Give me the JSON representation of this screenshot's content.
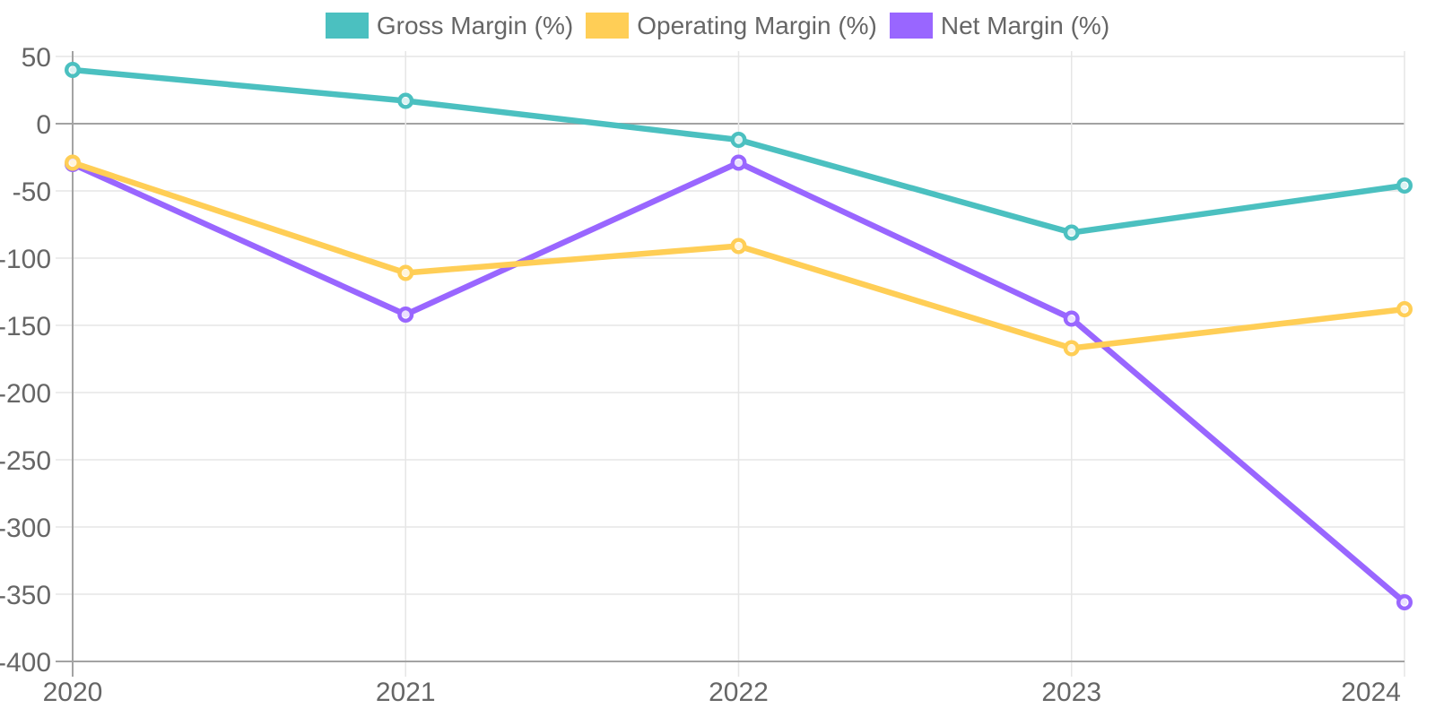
{
  "chart_data": {
    "type": "line",
    "title": "",
    "xlabel": "",
    "ylabel": "",
    "x": [
      "2020",
      "2021",
      "2022",
      "2023",
      "2024"
    ],
    "series": [
      {
        "name": "Gross Margin (%)",
        "color": "#4bc0c0",
        "values": [
          40,
          17,
          -12,
          -81,
          -46
        ]
      },
      {
        "name": "Operating Margin (%)",
        "color": "#ffce56",
        "values": [
          -29,
          -111,
          -91,
          -167,
          -138
        ]
      },
      {
        "name": "Net Margin (%)",
        "color": "#9966ff",
        "values": [
          -30,
          -142,
          -29,
          -145,
          -356
        ]
      }
    ],
    "ylim": [
      -400,
      50
    ],
    "ytick_step": 50,
    "yticks": [
      "50",
      "0",
      "-50",
      "-100",
      "-150",
      "-200",
      "-250",
      "-300",
      "-350",
      "-400"
    ],
    "grid": true,
    "legend_position": "top-center"
  }
}
